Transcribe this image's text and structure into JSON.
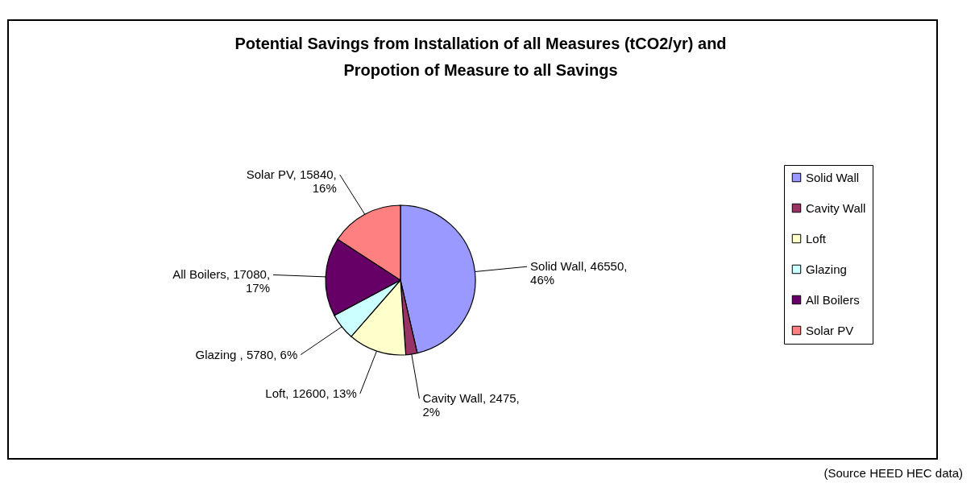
{
  "chart_data": {
    "type": "pie",
    "title": "Potential Savings from Installation of all Measures (tCO2/yr) and Propotion of Measure to all Savings",
    "categories": [
      "Solid Wall",
      "Cavity Wall",
      "Loft",
      "Glazing",
      "All Boilers",
      "Solar PV"
    ],
    "values": [
      46550,
      2475,
      12600,
      5780,
      17080,
      15840
    ],
    "colors": [
      "#9999ff",
      "#993366",
      "#ffffcc",
      "#ccffff",
      "#660066",
      "#ff8080"
    ],
    "value_labels": [
      "Solid Wall, 46550, 46%",
      "Cavity Wall, 2475, 2%",
      "Loft, 12600, 13%",
      "Glazing , 5780, 6%",
      "All Boilers, 17080, 17%",
      "Solar PV, 15840, 16%"
    ],
    "legend": "right",
    "annotations": [
      "(Source HEED HEC data)"
    ]
  }
}
